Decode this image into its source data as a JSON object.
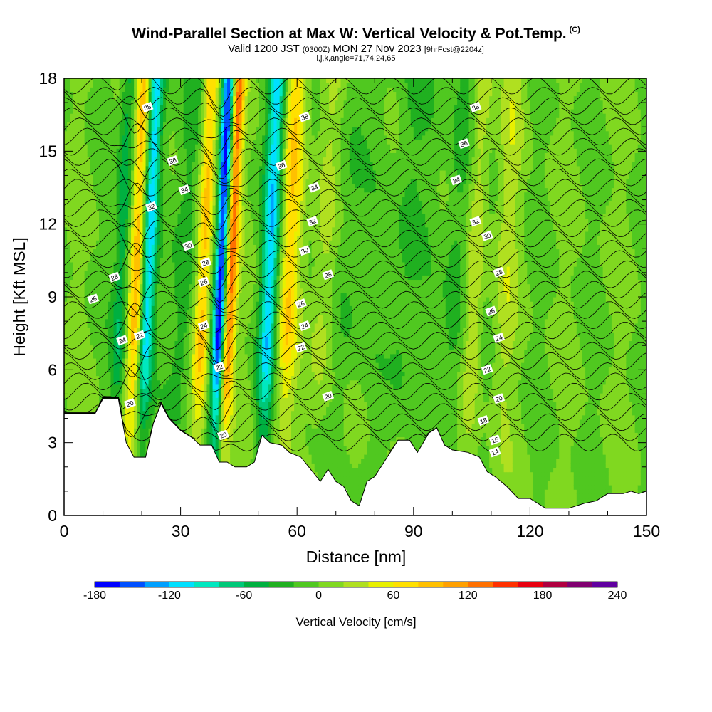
{
  "header": {
    "title": "Wind-Parallel Section at Max W: Vertical Velocity & Pot.Temp.",
    "copyright": "(C)",
    "valid_prefix": "Valid 1200 JST",
    "valid_utc": "(0300Z)",
    "valid_date": "MON 27 Nov 2023",
    "forecast": "[9hrFcst@2204z]",
    "indices": "i,j,k,angle=71,74,24,65"
  },
  "chart_data": {
    "type": "heatmap",
    "xlabel": "Distance [nm]",
    "ylabel": "Height [Kft MSL]",
    "xlim": [
      0,
      150
    ],
    "ylim": [
      0,
      18
    ],
    "x_ticks": [
      "0",
      "30",
      "60",
      "90",
      "120",
      "150"
    ],
    "x_tick_values": [
      0,
      30,
      60,
      90,
      120,
      150
    ],
    "y_ticks": [
      "0",
      "3",
      "6",
      "9",
      "12",
      "15",
      "18"
    ],
    "y_tick_values": [
      0,
      3,
      6,
      9,
      12,
      15,
      18
    ],
    "colorbar": {
      "title": "Vertical Velocity [cm/s]",
      "range": [
        -180,
        240
      ],
      "step": 20,
      "labels": [
        "-180",
        "-120",
        "-60",
        "0",
        "60",
        "120",
        "180",
        "240"
      ],
      "label_values": [
        -180,
        -120,
        -60,
        0,
        60,
        120,
        180,
        240
      ],
      "colors": [
        "#0000ff",
        "#0050ff",
        "#00a0ff",
        "#00e0ff",
        "#00e8c0",
        "#00c878",
        "#00b040",
        "#20b020",
        "#50c820",
        "#80d820",
        "#b0e020",
        "#e8f000",
        "#ffe000",
        "#ffc000",
        "#ffa000",
        "#ff7000",
        "#ff3000",
        "#e80010",
        "#b00040",
        "#800070",
        "#6000a0"
      ]
    },
    "updraft_bands": [
      {
        "x": 18,
        "w": 100,
        "width": 2.2
      },
      {
        "x": 35,
        "w": 90,
        "width": 2.0
      },
      {
        "x": 42,
        "w": 130,
        "width": 1.6
      },
      {
        "x": 57,
        "w": 70,
        "width": 2.6
      },
      {
        "x": 66,
        "w": 35,
        "width": 3.0
      },
      {
        "x": 105,
        "w": 40,
        "width": 2.4
      },
      {
        "x": 113,
        "w": 25,
        "width": 3.0
      }
    ],
    "downdraft_bands": [
      {
        "x": 20.5,
        "w": -130,
        "width": 2.0
      },
      {
        "x": 39.5,
        "w": -170,
        "width": 1.6
      },
      {
        "x": 52,
        "w": -110,
        "width": 2.2
      },
      {
        "x": 14,
        "w": -60,
        "width": 2.0
      },
      {
        "x": 30,
        "w": -40,
        "width": 3.0
      },
      {
        "x": 72,
        "w": -25,
        "width": 4.0
      },
      {
        "x": 87,
        "w": -30,
        "width": 4.0
      },
      {
        "x": 100,
        "w": -35,
        "width": 3.0
      }
    ],
    "terrain_top_kft": [
      [
        0,
        4.2
      ],
      [
        8,
        4.2
      ],
      [
        10,
        4.8
      ],
      [
        14,
        4.8
      ],
      [
        16,
        3.0
      ],
      [
        18,
        2.4
      ],
      [
        21,
        2.4
      ],
      [
        23,
        3.8
      ],
      [
        25,
        4.6
      ],
      [
        27,
        4.0
      ],
      [
        30,
        3.5
      ],
      [
        33,
        3.2
      ],
      [
        35,
        2.9
      ],
      [
        38,
        2.9
      ],
      [
        40,
        2.2
      ],
      [
        42,
        2.2
      ],
      [
        44,
        2.0
      ],
      [
        47,
        2.0
      ],
      [
        49,
        2.2
      ],
      [
        51,
        3.3
      ],
      [
        53,
        3.0
      ],
      [
        56,
        2.9
      ],
      [
        58,
        2.6
      ],
      [
        61,
        2.4
      ],
      [
        64,
        1.8
      ],
      [
        66,
        1.4
      ],
      [
        68,
        1.9
      ],
      [
        70,
        1.4
      ],
      [
        72,
        1.2
      ],
      [
        74,
        0.6
      ],
      [
        76,
        0.4
      ],
      [
        78,
        1.4
      ],
      [
        80,
        1.6
      ],
      [
        82,
        2.1
      ],
      [
        84,
        2.6
      ],
      [
        86,
        3.1
      ],
      [
        89,
        3.1
      ],
      [
        91,
        2.6
      ],
      [
        94,
        3.4
      ],
      [
        96,
        3.6
      ],
      [
        98,
        2.9
      ],
      [
        100,
        2.7
      ],
      [
        104,
        2.6
      ],
      [
        107,
        2.4
      ],
      [
        109,
        1.8
      ],
      [
        111,
        1.6
      ],
      [
        114,
        1.2
      ],
      [
        117,
        0.7
      ],
      [
        120,
        0.7
      ],
      [
        122,
        0.5
      ],
      [
        124,
        0.3
      ],
      [
        130,
        0.3
      ],
      [
        134,
        0.5
      ],
      [
        137,
        0.6
      ],
      [
        140,
        0.9
      ],
      [
        144,
        0.9
      ],
      [
        146,
        1.0
      ],
      [
        148,
        0.9
      ],
      [
        150,
        1.0
      ]
    ],
    "theta_contours": [
      {
        "theta": 14,
        "x": 111,
        "y": 2.6
      },
      {
        "theta": 16,
        "x": 111,
        "y": 3.1
      },
      {
        "theta": 18,
        "x": 108,
        "y": 3.9
      },
      {
        "theta": 20,
        "x": 17,
        "y": 4.6
      },
      {
        "theta": 20,
        "x": 41,
        "y": 3.3
      },
      {
        "theta": 20,
        "x": 68,
        "y": 4.9
      },
      {
        "theta": 20,
        "x": 112,
        "y": 4.8
      },
      {
        "theta": 22,
        "x": 19.5,
        "y": 7.4
      },
      {
        "theta": 22,
        "x": 40,
        "y": 6.1
      },
      {
        "theta": 22,
        "x": 61,
        "y": 6.9
      },
      {
        "theta": 22,
        "x": 109,
        "y": 6.0
      },
      {
        "theta": 24,
        "x": 15,
        "y": 7.2
      },
      {
        "theta": 24,
        "x": 36,
        "y": 7.8
      },
      {
        "theta": 24,
        "x": 62,
        "y": 7.8
      },
      {
        "theta": 24,
        "x": 112,
        "y": 7.3
      },
      {
        "theta": 26,
        "x": 7.5,
        "y": 8.9
      },
      {
        "theta": 26,
        "x": 61,
        "y": 8.7
      },
      {
        "theta": 26,
        "x": 36,
        "y": 9.6
      },
      {
        "theta": 26,
        "x": 110,
        "y": 8.4
      },
      {
        "theta": 28,
        "x": 13,
        "y": 9.8
      },
      {
        "theta": 28,
        "x": 36.5,
        "y": 10.4
      },
      {
        "theta": 28,
        "x": 68,
        "y": 9.9
      },
      {
        "theta": 28,
        "x": 112,
        "y": 10.0
      },
      {
        "theta": 30,
        "x": 32,
        "y": 11.1
      },
      {
        "theta": 30,
        "x": 62,
        "y": 10.9
      },
      {
        "theta": 30,
        "x": 109,
        "y": 11.5
      },
      {
        "theta": 32,
        "x": 22.5,
        "y": 12.7
      },
      {
        "theta": 32,
        "x": 64,
        "y": 12.1
      },
      {
        "theta": 32,
        "x": 106,
        "y": 12.1
      },
      {
        "theta": 34,
        "x": 31,
        "y": 13.4
      },
      {
        "theta": 34,
        "x": 64.5,
        "y": 13.5
      },
      {
        "theta": 34,
        "x": 101,
        "y": 13.8
      },
      {
        "theta": 36,
        "x": 28,
        "y": 14.6
      },
      {
        "theta": 36,
        "x": 56,
        "y": 14.4
      },
      {
        "theta": 36,
        "x": 103,
        "y": 15.3
      },
      {
        "theta": 38,
        "x": 21.5,
        "y": 16.8
      },
      {
        "theta": 38,
        "x": 62,
        "y": 16.4
      },
      {
        "theta": 38,
        "x": 106,
        "y": 16.8
      }
    ]
  }
}
